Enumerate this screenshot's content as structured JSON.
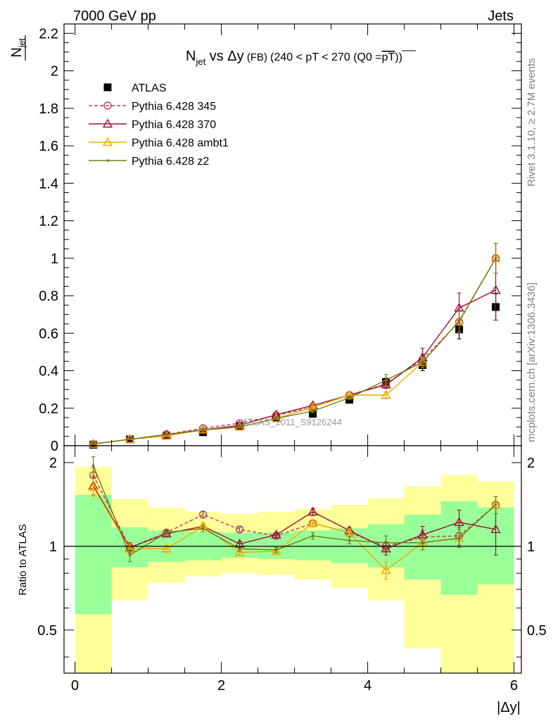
{
  "header": {
    "left_label": "7000 GeV pp",
    "right_label": "Jets"
  },
  "side_labels": {
    "upper": "Rivet 3.1.10, ≥ 2.7M events",
    "lower": "mcplots.cern.ch [arXiv:1306.3436]"
  },
  "chart_data": [
    {
      "panel": "main",
      "type": "line",
      "title": {
        "n": "N",
        "sub": "jet",
        "rest": " vs Δy",
        "small": " (FB) ",
        "cut": "(240 < pT < 270 (Q0 =",
        "bar": "pT",
        "close": "))"
      },
      "ylabel": {
        "num": "",
        "den": "N",
        "den_sub": "jet"
      },
      "watermark": "ATLAS_2011_S9126244",
      "xlim": [
        -0.15,
        6.1
      ],
      "ylim": [
        0,
        2.25
      ],
      "y_ticks": [
        "0",
        "0.2",
        "0.4",
        "0.6",
        "0.8",
        "1",
        "1.2",
        "1.4",
        "1.6",
        "1.8",
        "2",
        "2.2"
      ],
      "grid": false,
      "legend_position": "top-left",
      "x": [
        0.25,
        0.75,
        1.25,
        1.75,
        2.25,
        2.75,
        3.25,
        3.75,
        4.25,
        4.75,
        5.25,
        5.75
      ],
      "series": [
        {
          "name": "ATLAS",
          "marker": "square",
          "color": "#000000",
          "dash": "",
          "values": [
            0.005,
            0.034,
            0.053,
            0.072,
            0.105,
            0.15,
            0.17,
            0.245,
            0.34,
            0.43,
            0.62,
            0.74
          ],
          "err": [
            0.001,
            0.002,
            0.003,
            0.004,
            0.006,
            0.008,
            0.01,
            0.015,
            0.02,
            0.03,
            0.05,
            0.07
          ]
        },
        {
          "name": "Pythia 6.428 345",
          "marker": "circle",
          "color": "#b04060",
          "dash": "5,3",
          "values": [
            0.009,
            0.034,
            0.06,
            0.093,
            0.12,
            0.162,
            0.205,
            0.27,
            0.33,
            0.46,
            0.66,
            1.0
          ],
          "err": [
            0.001,
            0.002,
            0.003,
            0.004,
            0.005,
            0.006,
            0.008,
            0.01,
            0.02,
            0.03,
            0.06,
            0.08
          ]
        },
        {
          "name": "Pythia 6.428 370",
          "marker": "triangle",
          "color": "#9e1030",
          "dash": "",
          "values": [
            0.009,
            0.034,
            0.059,
            0.085,
            0.108,
            0.165,
            0.215,
            0.27,
            0.325,
            0.47,
            0.735,
            0.83
          ],
          "err": [
            0.001,
            0.002,
            0.003,
            0.004,
            0.005,
            0.006,
            0.008,
            0.01,
            0.02,
            0.05,
            0.08,
            0.16
          ]
        },
        {
          "name": "Pythia 6.428 ambt1",
          "marker": "triangle",
          "color": "#f5a800",
          "dash": "",
          "values": [
            0.0085,
            0.034,
            0.052,
            0.085,
            0.1,
            0.145,
            0.205,
            0.27,
            0.27,
            0.445,
            0.665,
            1.0
          ],
          "err": [
            0.001,
            0.002,
            0.003,
            0.004,
            0.005,
            0.006,
            0.008,
            0.01,
            0.02,
            0.03,
            0.06,
            0.08
          ]
        },
        {
          "name": "Pythia 6.428 z2",
          "marker": "dot",
          "color": "#6e7d10",
          "dash": "",
          "values": [
            0.01,
            0.034,
            0.059,
            0.083,
            0.1,
            0.145,
            0.185,
            0.255,
            0.35,
            0.445,
            0.665,
            1.0
          ],
          "err": [
            0.001,
            0.002,
            0.003,
            0.004,
            0.005,
            0.006,
            0.008,
            0.01,
            0.03,
            0.03,
            0.06,
            0.08
          ]
        }
      ]
    },
    {
      "panel": "ratio",
      "type": "line",
      "ylabel": "Ratio to ATLAS",
      "xlabel": "|Δy|",
      "xlim": [
        -0.15,
        6.1
      ],
      "ylim": [
        0.35,
        2.3
      ],
      "scale": "log",
      "x_ticks": [
        "0",
        "2",
        "4",
        "6"
      ],
      "y_ticks": [
        "0.5",
        "1",
        "2"
      ],
      "reference_line": 1,
      "bands": {
        "x_edges": [
          0,
          0.5,
          1.0,
          1.5,
          2.0,
          2.5,
          3.0,
          3.5,
          4.0,
          4.5,
          5.0,
          5.5,
          6.0
        ],
        "yellow_low": [
          0.35,
          0.64,
          0.74,
          0.78,
          0.8,
          0.79,
          0.76,
          0.71,
          0.64,
          0.43,
          0.35,
          0.35
        ],
        "yellow_high": [
          1.93,
          1.48,
          1.38,
          1.33,
          1.31,
          1.33,
          1.36,
          1.41,
          1.49,
          1.64,
          1.8,
          1.71
        ],
        "green_low": [
          0.57,
          0.84,
          0.88,
          0.89,
          0.91,
          0.9,
          0.89,
          0.87,
          0.84,
          0.76,
          0.67,
          0.73
        ],
        "green_high": [
          1.53,
          1.17,
          1.14,
          1.13,
          1.12,
          1.12,
          1.14,
          1.16,
          1.2,
          1.3,
          1.45,
          1.38
        ]
      },
      "x": [
        0.25,
        0.75,
        1.25,
        1.75,
        2.25,
        2.75,
        3.25,
        3.75,
        4.25,
        4.75,
        5.25,
        5.75
      ],
      "series": [
        {
          "name": "Pythia 6.428 345",
          "marker": "circle",
          "color": "#b04060",
          "dash": "5,3",
          "values": [
            1.8,
            0.99,
            1.12,
            1.3,
            1.15,
            1.09,
            1.21,
            1.12,
            1.0,
            1.08,
            1.09,
            1.41
          ],
          "err": [
            0.12,
            0.04,
            0.03,
            0.03,
            0.02,
            0.02,
            0.03,
            0.03,
            0.04,
            0.06,
            0.08,
            0.1
          ]
        },
        {
          "name": "Pythia 6.428 370",
          "marker": "triangle",
          "color": "#9e1030",
          "dash": "",
          "values": [
            1.65,
            0.99,
            1.11,
            1.18,
            1.02,
            1.1,
            1.33,
            1.14,
            0.98,
            1.1,
            1.22,
            1.15
          ],
          "err": [
            0.12,
            0.04,
            0.03,
            0.03,
            0.02,
            0.02,
            0.04,
            0.03,
            0.05,
            0.08,
            0.13,
            0.22
          ]
        },
        {
          "name": "Pythia 6.428 ambt1",
          "marker": "triangle",
          "color": "#f5a800",
          "dash": "",
          "values": [
            1.63,
            0.98,
            0.98,
            1.18,
            0.95,
            0.96,
            1.21,
            1.12,
            0.82,
            1.03,
            1.07,
            1.41
          ],
          "err": [
            0.12,
            0.04,
            0.03,
            0.03,
            0.02,
            0.02,
            0.03,
            0.03,
            0.06,
            0.06,
            0.08,
            0.1
          ]
        },
        {
          "name": "Pythia 6.428 z2",
          "marker": "dot",
          "color": "#6e7d10",
          "dash": "",
          "values": [
            1.95,
            0.93,
            1.12,
            1.16,
            0.98,
            0.97,
            1.09,
            1.05,
            1.03,
            1.03,
            1.07,
            1.41
          ],
          "err": [
            0.15,
            0.05,
            0.03,
            0.03,
            0.02,
            0.02,
            0.03,
            0.03,
            0.06,
            0.06,
            0.08,
            0.1
          ]
        }
      ]
    }
  ]
}
